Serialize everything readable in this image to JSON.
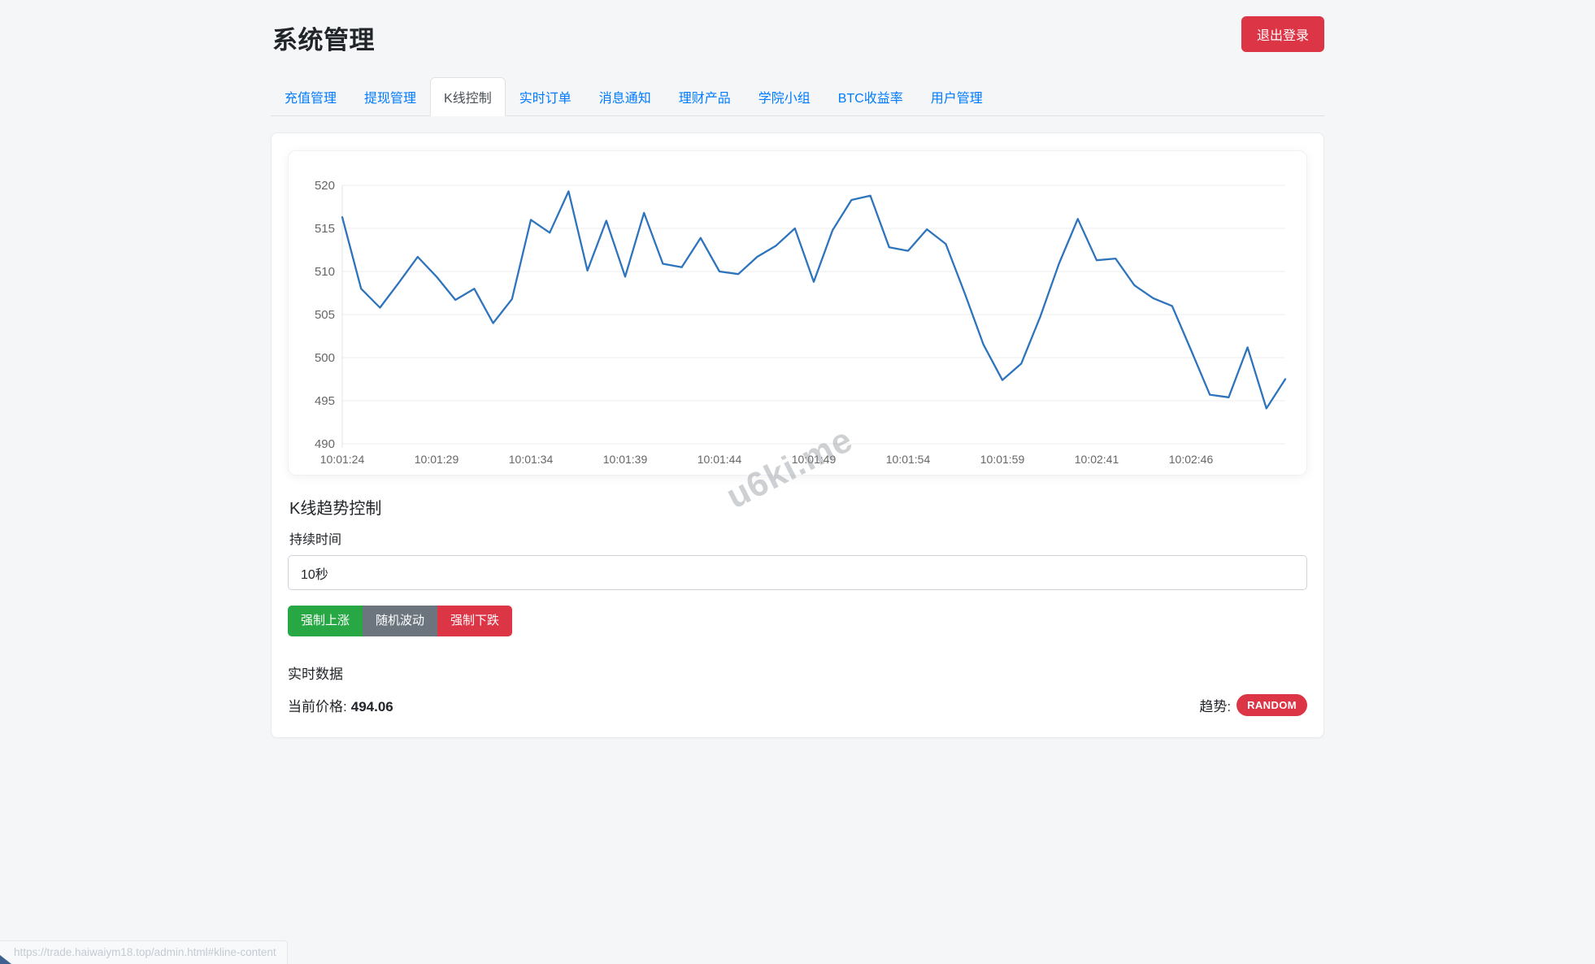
{
  "header": {
    "title": "系统管理",
    "logout_label": "退出登录"
  },
  "tabs": [
    {
      "label": "充值管理",
      "active": false
    },
    {
      "label": "提现管理",
      "active": false
    },
    {
      "label": "K线控制",
      "active": true
    },
    {
      "label": "实时订单",
      "active": false
    },
    {
      "label": "消息通知",
      "active": false
    },
    {
      "label": "理财产品",
      "active": false
    },
    {
      "label": "学院小组",
      "active": false
    },
    {
      "label": "BTC收益率",
      "active": false
    },
    {
      "label": "用户管理",
      "active": false
    }
  ],
  "kline": {
    "section_title": "K线趋势控制",
    "duration_label": "持续时间",
    "duration_value": "10秒",
    "buttons": {
      "force_up": "强制上涨",
      "random": "随机波动",
      "force_down": "强制下跌"
    },
    "realtime_title": "实时数据",
    "current_price_label": "当前价格:",
    "current_price": "494.06",
    "trend_label": "趋势:",
    "trend_value": "RANDOM"
  },
  "watermark": {
    "text": "u6ki.me"
  },
  "statusbar": {
    "url": "https://trade.haiwaiym18.top/admin.html#kline-content"
  },
  "colors": {
    "accent_blue": "#007bff",
    "line_blue": "#2e74bd",
    "success_green": "#28a745",
    "secondary_gray": "#6c757d",
    "danger_red": "#dc3545"
  },
  "chart_data": {
    "type": "line",
    "title": "",
    "xlabel": "",
    "ylabel": "",
    "ylim": [
      490,
      520
    ],
    "ytick_step": 5,
    "grid": true,
    "legend_position": "none",
    "line_color": "#2e74bd",
    "label_every": 5,
    "x_labels": [
      "10:01:24",
      "10:01:29",
      "10:01:34",
      "10:01:39",
      "10:01:44",
      "10:01:49",
      "10:01:54",
      "10:01:59",
      "10:02:41",
      "10:02:46"
    ],
    "values": [
      516.3,
      508.0,
      505.8,
      508.7,
      511.7,
      509.4,
      506.7,
      508.0,
      504.0,
      506.8,
      516.0,
      514.5,
      519.3,
      510.1,
      515.9,
      509.4,
      516.8,
      510.9,
      510.5,
      513.9,
      510.0,
      509.7,
      511.7,
      513.0,
      515.0,
      508.8,
      514.8,
      518.3,
      518.8,
      512.8,
      512.4,
      514.9,
      513.2,
      507.5,
      501.5,
      497.4,
      499.3,
      504.7,
      510.9,
      516.1,
      511.3,
      511.5,
      508.4,
      506.9,
      506.0,
      500.9,
      495.7,
      495.4,
      501.2,
      494.1,
      497.5
    ]
  }
}
